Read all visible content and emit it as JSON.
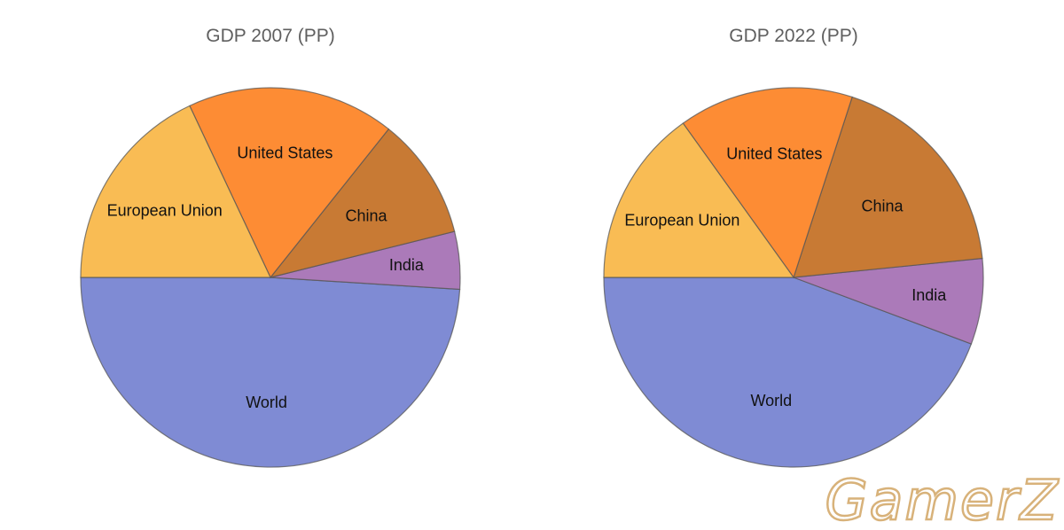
{
  "chart_data": [
    {
      "type": "pie",
      "title": "GDP 2007 (PP)",
      "categories": [
        "World",
        "India",
        "China",
        "United States",
        "European Union"
      ],
      "values": [
        49.0,
        4.9,
        10.4,
        17.7,
        18.0
      ],
      "colors": [
        "#7f8bd4",
        "#ab7ab9",
        "#c87a34",
        "#fd8c34",
        "#f9bc54"
      ]
    },
    {
      "type": "pie",
      "title": "GDP 2022 (PP)",
      "categories": [
        "World",
        "India",
        "China",
        "United States",
        "European Union"
      ],
      "values": [
        44.3,
        7.3,
        18.4,
        14.9,
        15.1
      ],
      "colors": [
        "#7f8bd4",
        "#ab7ab9",
        "#c87a34",
        "#fd8c34",
        "#f9bc54"
      ]
    }
  ],
  "watermark": {
    "text": "GamerZ"
  }
}
